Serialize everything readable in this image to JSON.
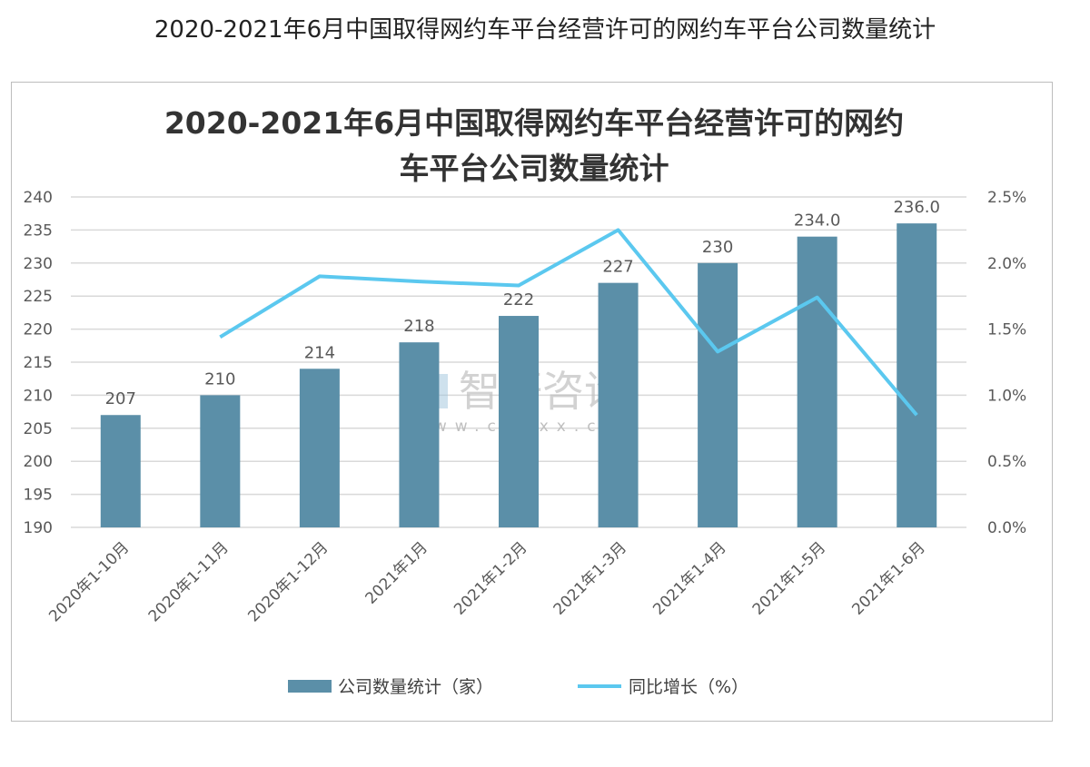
{
  "page_title": "2020-2021年6月中国取得网约车平台经营许可的网约车平台公司数量统计",
  "watermark": {
    "text": "智研咨询",
    "url": "www.chyxx.com"
  },
  "chart_data": {
    "type": "bar+line",
    "title_lines": [
      "2020-2021年6月中国取得网约车平台经营许可的网约",
      "车平台公司数量统计"
    ],
    "categories": [
      "2020年1-10月",
      "2020年1-11月",
      "2020年1-12月",
      "2021年1月",
      "2021年1-2月",
      "2021年1-3月",
      "2021年1-4月",
      "2021年1-5月",
      "2021年1-6月"
    ],
    "series": [
      {
        "name": "公司数量统计（家）",
        "type": "bar",
        "axis": "left",
        "color": "#5b8fa8",
        "values": [
          207,
          210,
          214,
          218,
          222,
          227,
          230,
          234,
          236
        ],
        "labels": [
          "207",
          "210",
          "214",
          "218",
          "222",
          "227",
          "230",
          "234.0",
          "236.0"
        ]
      },
      {
        "name": "同比增长（%）",
        "type": "line",
        "axis": "right",
        "color": "#5bc8ef",
        "values": [
          null,
          1.44,
          1.9,
          1.86,
          1.83,
          2.25,
          1.33,
          1.74,
          0.85
        ]
      }
    ],
    "left_axis": {
      "range": [
        190,
        240
      ],
      "ticks": [
        "190",
        "195",
        "200",
        "205",
        "210",
        "215",
        "220",
        "225",
        "230",
        "235",
        "240"
      ]
    },
    "right_axis": {
      "range": [
        0,
        2.5
      ],
      "ticks": [
        "0.0%",
        "0.5%",
        "1.0%",
        "1.5%",
        "2.0%",
        "2.5%"
      ]
    },
    "grid": true,
    "legend_position": "bottom"
  }
}
